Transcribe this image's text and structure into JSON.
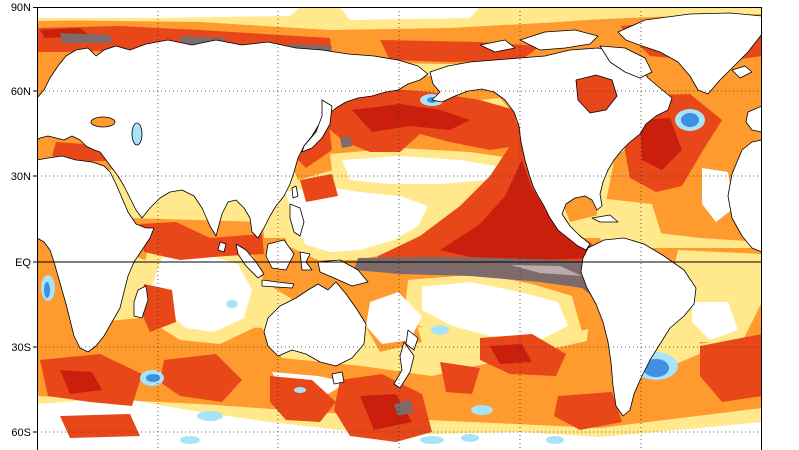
{
  "map": {
    "lat_labels": [
      "90N",
      "60N",
      "30N",
      "EQ",
      "30S",
      "60S"
    ],
    "colors": {
      "neutral": "#ffffff",
      "pale_yellow": "#ffe98c",
      "orange": "#ff9a2e",
      "red_orange": "#e8471a",
      "deep_red": "#c91f0c",
      "brown_gray": "#7d6a6a",
      "brown_light": "#b8acac",
      "light_blue": "#a9e3f7",
      "blue": "#3f8fe3",
      "land": "#ffffff",
      "coastline": "#000000"
    }
  }
}
